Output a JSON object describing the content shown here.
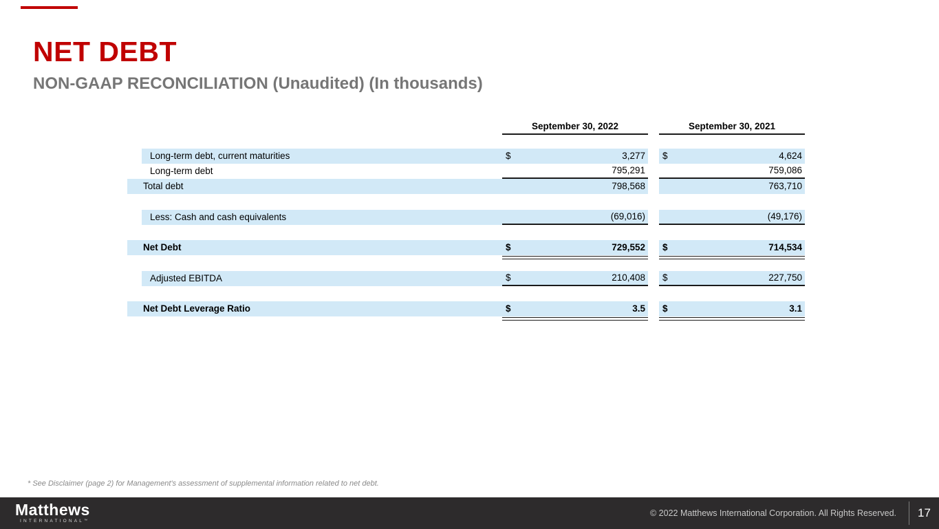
{
  "slide": {
    "title": "NET DEBT",
    "subtitle": "NON-GAAP RECONCILIATION (Unaudited) (In thousands)",
    "footnote": "* See Disclaimer (page 2) for Management's assessment of supplemental information related to net debt.",
    "accent_color": "#c00000",
    "row_highlight_color": "#d2e9f7",
    "footer_bar_color": "#2d2b2c"
  },
  "table": {
    "columns": [
      "September 30, 2022",
      "September 30, 2021"
    ],
    "rows": [
      {
        "label": "Long-term debt, current maturities",
        "indent": true,
        "fill": true,
        "bold": false,
        "dollar": true,
        "values": [
          "3,277",
          "4,624"
        ],
        "rule": "none",
        "gap_after": 0
      },
      {
        "label": "Long-term debt",
        "indent": true,
        "fill": false,
        "bold": false,
        "dollar": false,
        "values": [
          "795,291",
          "759,086"
        ],
        "rule": "single",
        "gap_after": 0
      },
      {
        "label": "Total debt",
        "indent": false,
        "fill": true,
        "bold": false,
        "dollar": false,
        "values": [
          "798,568",
          "763,710"
        ],
        "rule": "none",
        "gap_after": 23
      },
      {
        "label": "Less: Cash and cash equivalents",
        "indent": true,
        "fill": true,
        "bold": false,
        "dollar": false,
        "values": [
          "(69,016)",
          "(49,176)"
        ],
        "rule": "single",
        "gap_after": 22
      },
      {
        "label": "Net Debt",
        "indent": false,
        "fill": true,
        "bold": true,
        "dollar": true,
        "values": [
          "729,552",
          "714,534"
        ],
        "rule": "double",
        "gap_after": 17
      },
      {
        "label": "Adjusted EBITDA",
        "indent": true,
        "fill": true,
        "bold": false,
        "dollar": true,
        "values": [
          "210,408",
          "227,750"
        ],
        "rule": "single",
        "gap_after": 22
      },
      {
        "label": "Net Debt Leverage Ratio",
        "indent": false,
        "fill": true,
        "bold": true,
        "dollar": true,
        "values": [
          "3.5",
          "3.1"
        ],
        "rule": "double",
        "gap_after": 0
      }
    ],
    "dollar_sign": "$"
  },
  "footer": {
    "logo_primary": "Matthews",
    "logo_secondary": "INTERNATIONAL",
    "logo_mark": "™",
    "copyright": "© 2022 Matthews International Corporation. All Rights Reserved.",
    "page_number": "17"
  }
}
